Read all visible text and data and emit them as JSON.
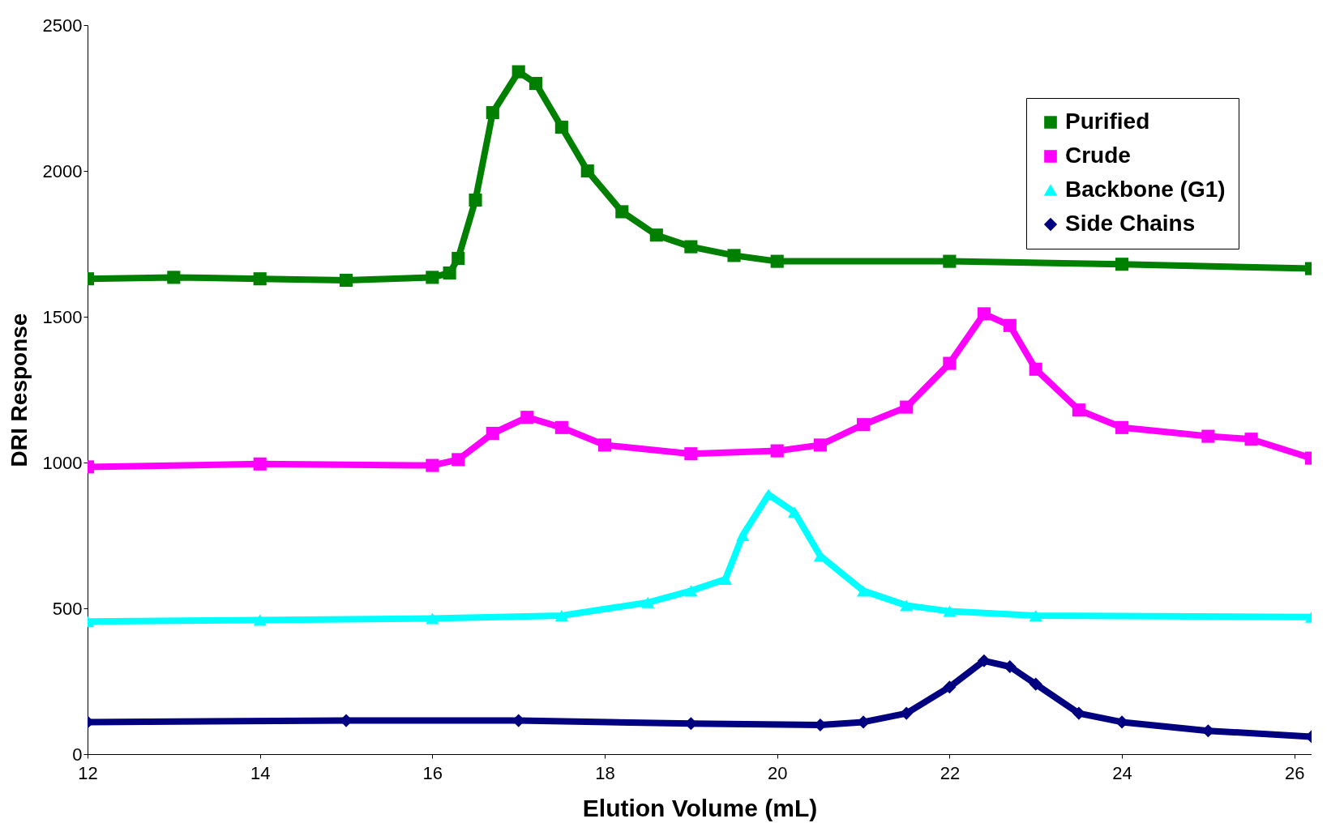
{
  "chart_data": {
    "type": "line",
    "xlabel": "Elution Volume (mL)",
    "ylabel": "DRI Response",
    "xlim": [
      12,
      26.2
    ],
    "xticks": [
      12,
      14,
      16,
      18,
      20,
      22,
      24,
      26
    ],
    "ylim": [
      0,
      2500
    ],
    "yticks": [
      0,
      500,
      1000,
      1500,
      2000,
      2500
    ],
    "grid": false,
    "legend": "top right",
    "series": [
      {
        "name": "Purified",
        "color": "#008000",
        "marker": "square",
        "x": [
          12,
          13,
          14,
          15,
          16,
          16.2,
          16.3,
          16.5,
          16.7,
          17,
          17.2,
          17.5,
          17.8,
          18.2,
          18.6,
          19,
          19.5,
          20,
          22,
          24,
          26.2
        ],
        "values": [
          1630,
          1635,
          1630,
          1625,
          1635,
          1650,
          1700,
          1900,
          2200,
          2340,
          2300,
          2150,
          2000,
          1860,
          1780,
          1740,
          1710,
          1690,
          1690,
          1680,
          1665
        ]
      },
      {
        "name": "Crude",
        "color": "#ff00ff",
        "marker": "square",
        "x": [
          12,
          14,
          16,
          16.3,
          16.7,
          17.1,
          17.5,
          18,
          19,
          20,
          20.5,
          21,
          21.5,
          22,
          22.4,
          22.7,
          23,
          23.5,
          24,
          25,
          25.5,
          26.2
        ],
        "values": [
          985,
          995,
          990,
          1010,
          1100,
          1155,
          1120,
          1060,
          1030,
          1040,
          1060,
          1130,
          1190,
          1340,
          1510,
          1470,
          1320,
          1180,
          1120,
          1090,
          1080,
          1015
        ]
      },
      {
        "name": "Backbone (G1)",
        "color": "#00ffff",
        "marker": "triangle",
        "x": [
          12,
          14,
          16,
          17.5,
          18.5,
          19,
          19.4,
          19.6,
          19.9,
          20.2,
          20.5,
          21,
          21.5,
          22,
          23,
          26.2
        ],
        "values": [
          455,
          460,
          465,
          475,
          520,
          560,
          600,
          750,
          890,
          830,
          680,
          560,
          510,
          490,
          475,
          470
        ]
      },
      {
        "name": "Side Chains",
        "color": "#000080",
        "marker": "diamond",
        "x": [
          12,
          15,
          17,
          19,
          20.5,
          21,
          21.5,
          22,
          22.4,
          22.7,
          23,
          23.5,
          24,
          25,
          26.2
        ],
        "values": [
          110,
          115,
          115,
          105,
          100,
          110,
          140,
          230,
          320,
          300,
          240,
          140,
          110,
          80,
          60
        ]
      }
    ]
  }
}
